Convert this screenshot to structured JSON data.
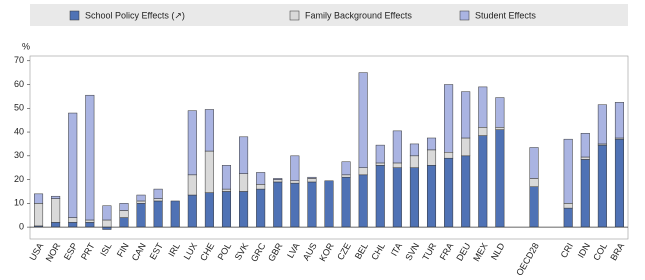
{
  "chart_data": {
    "type": "stacked-bar",
    "y_label": "%",
    "categories": [
      "USA",
      "NOR",
      "ESP",
      "PRT",
      "ISL",
      "FIN",
      "CAN",
      "EST",
      "IRL",
      "LUX",
      "CHE",
      "POL",
      "SVK",
      "GRC",
      "GBR",
      "LVA",
      "AUS",
      "KOR",
      "CZE",
      "BEL",
      "CHL",
      "ITA",
      "SVN",
      "TUR",
      "FRA",
      "DEU",
      "MEX",
      "NLD",
      null,
      "OECD28",
      null,
      "CRI",
      "IDN",
      "COL",
      "BRA"
    ],
    "series": [
      {
        "name": "School Policy Effects (↗)",
        "color": "#4f72b5",
        "values": [
          0.5,
          2,
          2,
          2,
          -1,
          4,
          10,
          11,
          11,
          13.5,
          14.5,
          15,
          15,
          16,
          19,
          18.5,
          19,
          19.5,
          21,
          22,
          26,
          25,
          25,
          26,
          29,
          30,
          38.5,
          41,
          null,
          17,
          null,
          8,
          28.5,
          34.5,
          37
        ]
      },
      {
        "name": "Family Background Effects",
        "color": "#d9d9d9",
        "values": [
          9.5,
          10,
          2,
          1,
          3,
          3,
          1,
          1,
          0,
          8.5,
          17.5,
          1,
          7.5,
          2,
          1,
          1,
          1.5,
          0,
          1,
          3,
          1,
          2,
          5,
          6.5,
          2.5,
          7.5,
          3.5,
          1,
          null,
          3.5,
          null,
          2,
          1,
          0.5,
          0.5
        ]
      },
      {
        "name": "Student Effects",
        "color": "#aab4e2",
        "values": [
          4,
          1,
          44,
          52.5,
          6,
          3,
          2.5,
          4,
          0,
          27,
          17.5,
          10,
          15.5,
          5,
          0.5,
          10.5,
          0.5,
          0,
          5.5,
          40,
          7.5,
          13.5,
          5,
          5,
          28.5,
          19.5,
          17,
          12.5,
          null,
          13,
          null,
          27,
          10,
          16.5,
          15
        ]
      }
    ],
    "ylim": [
      -5,
      72
    ],
    "yticks": [
      0,
      10,
      20,
      30,
      40,
      50,
      60,
      70
    ],
    "grid": false
  }
}
